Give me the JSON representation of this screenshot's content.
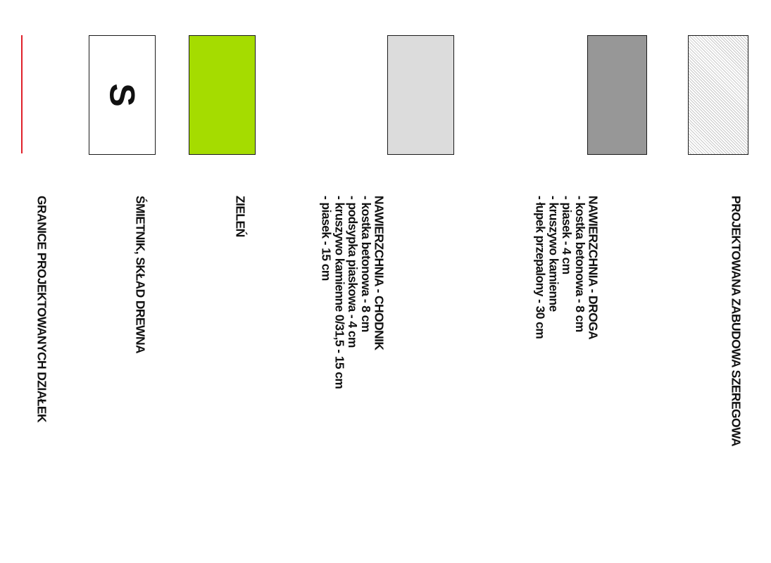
{
  "legend": {
    "items": [
      {
        "id": "zabudowa",
        "swatch": "hatch",
        "color": "#c8c8c8",
        "title": "PROJEKTOWANA ZABUDOWA SZEREGOWA",
        "lines": []
      },
      {
        "id": "droga",
        "swatch": "solid",
        "color": "#979797",
        "title": "NAWIERZCHNIA - DROGA",
        "lines": [
          "- kostka betonowa - 8 cm",
          "- piasek - 4 cm",
          "- kruszywo kamienne",
          "- łupek przepalony - 30 cm"
        ]
      },
      {
        "id": "chodnik",
        "swatch": "solid",
        "color": "#dcdcdc",
        "title": "NAWIERZCHNIA - CHODNIK",
        "lines": [
          "- kostka betonowa - 8 cm",
          "- podsypka piaskowa - 4 cm",
          "- kruszywo kamienne 0/31,5 - 15 cm",
          "- piasek - 15 cm"
        ]
      },
      {
        "id": "zielen",
        "swatch": "solid",
        "color": "#a5dc00",
        "title": "ZIELEŃ",
        "lines": []
      },
      {
        "id": "smietnik",
        "swatch": "letter",
        "color": "#ffffff",
        "letter": "S",
        "title": "ŚMIETNIK, SKŁAD DREWNA",
        "lines": []
      },
      {
        "id": "granice",
        "swatch": "line",
        "color": "#e0202a",
        "title": "GRANICE PROJEKTOWANYCH DZIAŁEK",
        "lines": []
      }
    ]
  }
}
